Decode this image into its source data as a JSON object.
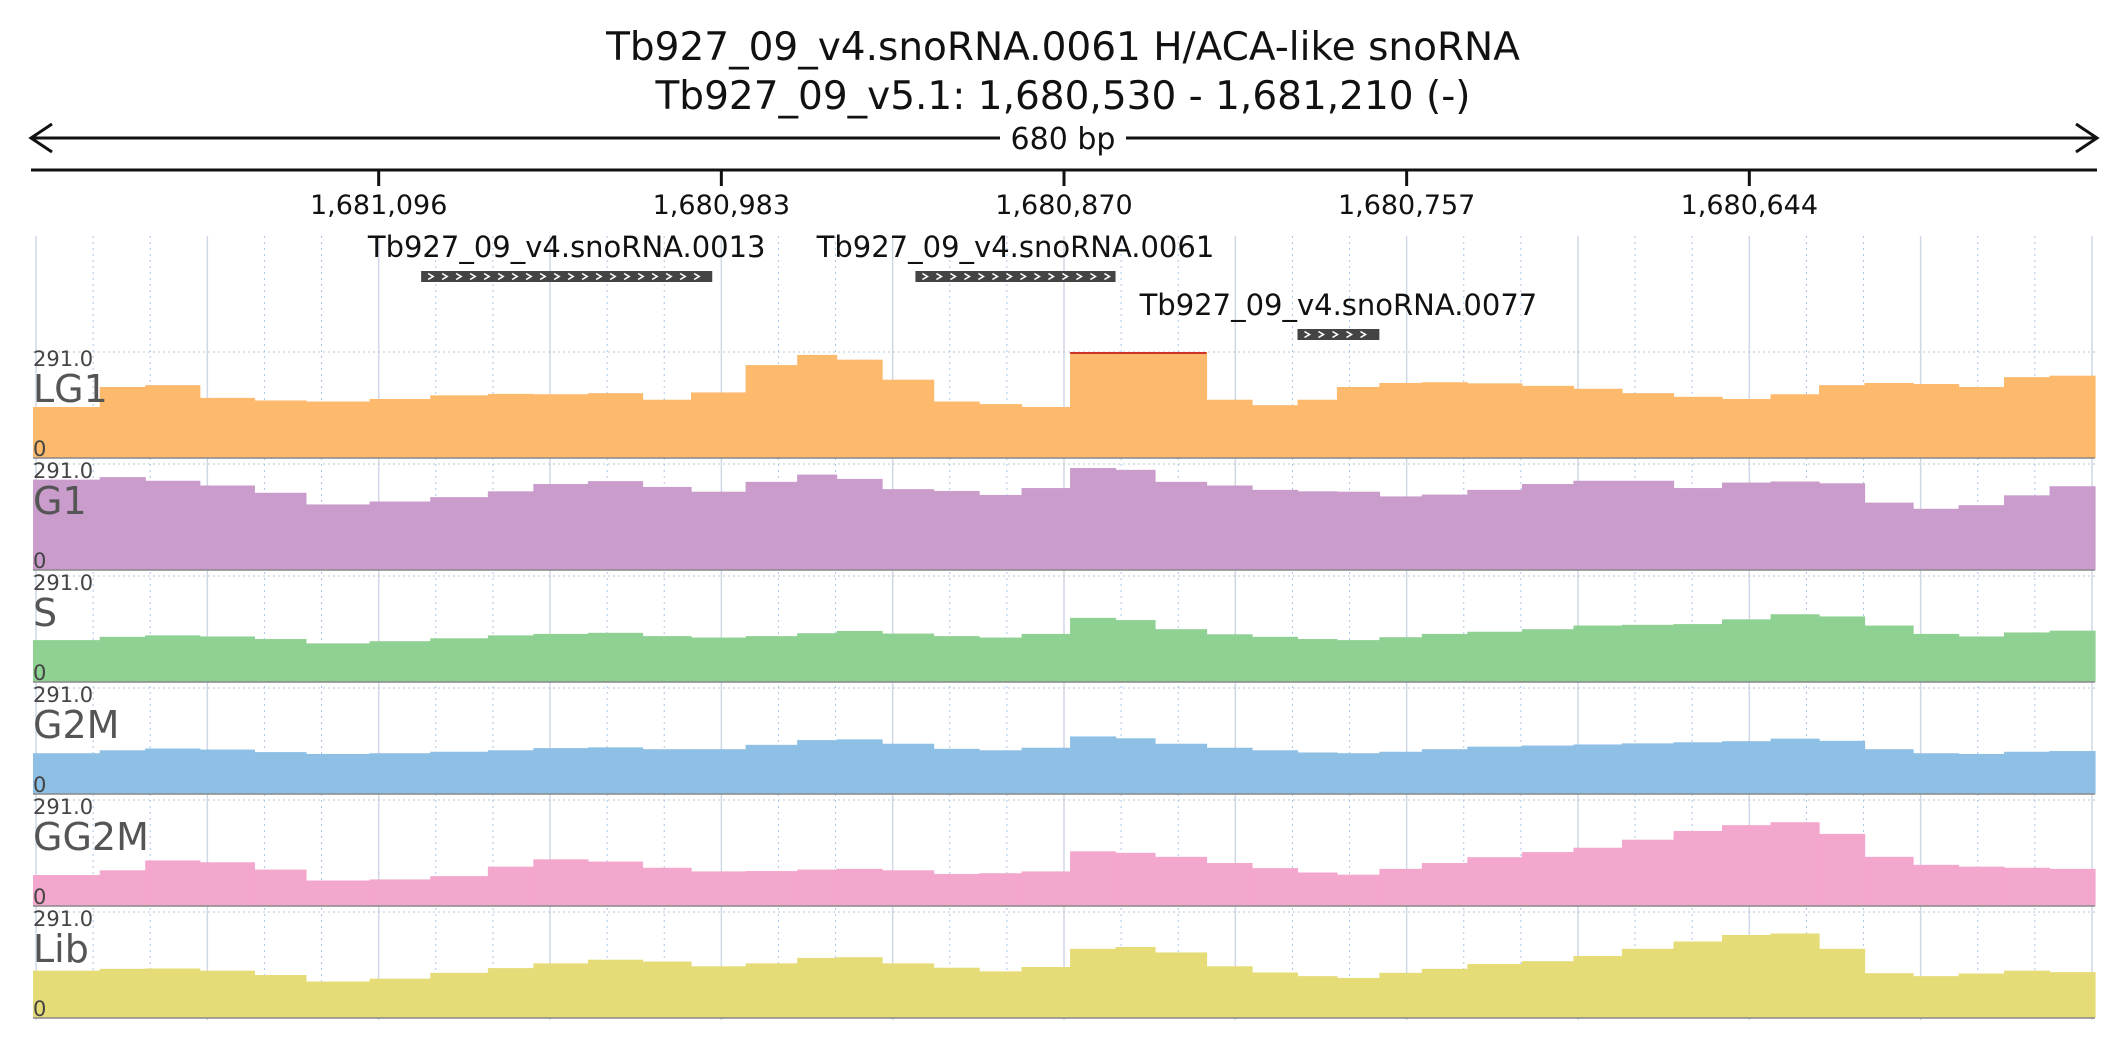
{
  "header": {
    "title": "Tb927_09_v4.snoRNA.0061  H/ACA-like snoRNA",
    "locus": "Tb927_09_v5.1: 1,680,530 - 1,681,210 (-)",
    "span": "680 bp"
  },
  "chart_data": {
    "type": "bar",
    "title": "Tb927_09_v4.snoRNA.0061  H/ACA-like snoRNA",
    "region": {
      "chrom": "Tb927_09_v5.1",
      "start": 1680530,
      "end": 1681210,
      "strand": "-"
    },
    "x_axis": {
      "orientation": "reversed",
      "tick_values": [
        1681096,
        1680983,
        1680870,
        1680757,
        1680644
      ],
      "tick_labels": [
        "1,681,096",
        "1,680,983",
        "1,680,870",
        "1,680,757",
        "1,680,644"
      ]
    },
    "genes": [
      {
        "name": "Tb927_09_v4.snoRNA.0013",
        "start": 1680986,
        "end": 1681082
      },
      {
        "name": "Tb927_09_v4.snoRNA.0061",
        "start": 1680853,
        "end": 1680919
      },
      {
        "name": "Tb927_09_v4.snoRNA.0077",
        "start": 1680766,
        "end": 1680793
      }
    ],
    "ylim": [
      0,
      291.0
    ],
    "scale_max_label": "291.0",
    "scale_min_label": "0",
    "x_breakpoints": [
      1681210,
      1681188,
      1681173,
      1681155,
      1681137,
      1681120,
      1681099,
      1681079,
      1681060,
      1681045,
      1681027,
      1681009,
      1680993,
      1680975,
      1680958,
      1680945,
      1680930,
      1680913,
      1680898,
      1680884,
      1680868,
      1680853,
      1680840,
      1680823,
      1680808,
      1680793,
      1680780,
      1680766,
      1680752,
      1680737,
      1680719,
      1680702,
      1680686,
      1680669,
      1680653,
      1680637,
      1680621,
      1680606,
      1680590,
      1680575,
      1680560,
      1680545,
      1680530
    ],
    "series": [
      {
        "name": "LG1",
        "color": "#fdb96c",
        "values": [
          140,
          195,
          200,
          165,
          158,
          155,
          162,
          172,
          176,
          175,
          178,
          160,
          180,
          255,
          283,
          270,
          215,
          155,
          148,
          140,
          300,
          300,
          296,
          160,
          145,
          160,
          195,
          206,
          208,
          205,
          198,
          190,
          178,
          168,
          162,
          175,
          200,
          206,
          203,
          195,
          222,
          226,
          230
        ]
      },
      {
        "name": "G1",
        "color": "#c99ccc",
        "values": [
          248,
          255,
          245,
          232,
          212,
          180,
          188,
          200,
          216,
          236,
          244,
          228,
          215,
          242,
          262,
          250,
          222,
          217,
          206,
          225,
          280,
          275,
          242,
          232,
          220,
          216,
          215,
          202,
          207,
          220,
          236,
          245,
          245,
          225,
          240,
          243,
          238,
          185,
          168,
          178,
          205,
          230,
          240
        ]
      },
      {
        "name": "S",
        "color": "#8ed192",
        "values": [
          115,
          124,
          128,
          125,
          118,
          106,
          112,
          120,
          128,
          132,
          135,
          126,
          122,
          126,
          134,
          140,
          133,
          126,
          122,
          132,
          176,
          170,
          145,
          131,
          124,
          118,
          115,
          123,
          132,
          138,
          145,
          155,
          157,
          159,
          172,
          186,
          180,
          155,
          132,
          125,
          136,
          141,
          145
        ]
      },
      {
        "name": "G2M",
        "color": "#8ec0e6",
        "values": [
          112,
          120,
          125,
          122,
          115,
          110,
          112,
          116,
          120,
          126,
          128,
          123,
          123,
          135,
          148,
          150,
          138,
          124,
          120,
          127,
          158,
          153,
          138,
          127,
          120,
          114,
          112,
          116,
          123,
          130,
          133,
          136,
          139,
          142,
          145,
          152,
          146,
          123,
          112,
          110,
          116,
          118,
          120
        ]
      },
      {
        "name": "GG2M",
        "color": "#f4a7cc",
        "values": [
          85,
          98,
          125,
          120,
          100,
          70,
          73,
          82,
          108,
          128,
          122,
          105,
          95,
          96,
          100,
          102,
          98,
          88,
          90,
          95,
          150,
          146,
          135,
          118,
          104,
          92,
          86,
          102,
          118,
          134,
          148,
          160,
          182,
          206,
          222,
          230,
          198,
          135,
          113,
          108,
          105,
          102,
          100
        ]
      },
      {
        "name": "Lib",
        "color": "#e6dc77",
        "values": [
          130,
          135,
          136,
          130,
          118,
          100,
          108,
          124,
          137,
          150,
          160,
          155,
          142,
          150,
          165,
          167,
          150,
          138,
          128,
          140,
          190,
          195,
          180,
          142,
          125,
          115,
          110,
          124,
          135,
          148,
          156,
          170,
          190,
          210,
          228,
          232,
          190,
          123,
          115,
          122,
          130,
          126,
          120
        ]
      }
    ]
  }
}
